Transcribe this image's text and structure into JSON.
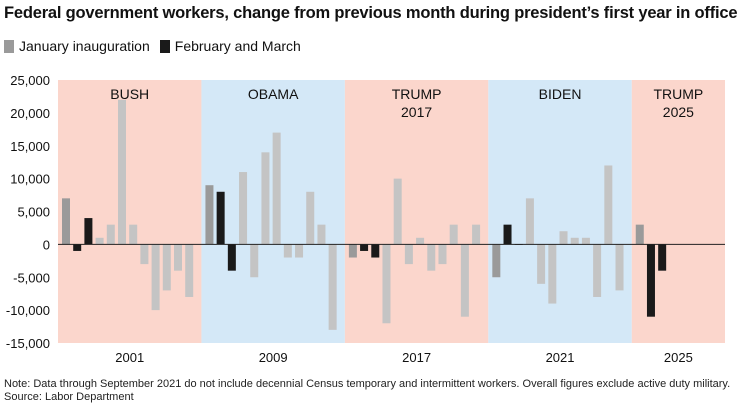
{
  "title": "Federal government workers, change from previous month during president’s first year in office",
  "legend": [
    {
      "label": "January inauguration",
      "color": "#9a9a9a"
    },
    {
      "label": "February and March",
      "color": "#1a1a1a"
    }
  ],
  "note": "Note: Data through September 2021 do not include decennial Census temporary and intermittent workers. Overall figures exclude active duty military.",
  "source": "Source: Labor Department",
  "colors": {
    "light_bar": "#c4c4c4",
    "pink_band": "#fbd6cc",
    "blue_band": "#d4e8f7"
  },
  "chart_data": {
    "type": "bar",
    "ylim": [
      -15000,
      25000
    ],
    "yticks": [
      "25,000",
      "20,000",
      "15,000",
      "10,000",
      "5,000",
      "0",
      "-5,000",
      "-10,000",
      "-15,000"
    ],
    "ytick_values": [
      25000,
      20000,
      15000,
      10000,
      5000,
      0,
      -5000,
      -10000,
      -15000
    ],
    "grid": false,
    "legend_position": "top-left",
    "panels": [
      {
        "label": "BUSH",
        "label2": "",
        "year": "2001",
        "band": "pink",
        "values": [
          7000,
          -1000,
          4000,
          1000,
          3000,
          22000,
          3000,
          -3000,
          -10000,
          -7000,
          -4000,
          -8000
        ],
        "kinds": [
          "jan",
          "febmar",
          "febmar",
          "rest",
          "rest",
          "rest",
          "rest",
          "rest",
          "rest",
          "rest",
          "rest",
          "rest"
        ]
      },
      {
        "label": "OBAMA",
        "label2": "",
        "year": "2009",
        "band": "blue",
        "values": [
          9000,
          8000,
          -4000,
          11000,
          -5000,
          14000,
          17000,
          -2000,
          -2000,
          8000,
          3000,
          -13000
        ],
        "kinds": [
          "jan",
          "febmar",
          "febmar",
          "rest",
          "rest",
          "rest",
          "rest",
          "rest",
          "rest",
          "rest",
          "rest",
          "rest"
        ]
      },
      {
        "label": "TRUMP",
        "label2": "2017",
        "year": "2017",
        "band": "pink",
        "values": [
          -2000,
          -1000,
          -2000,
          10000,
          -3000,
          1000,
          -4000,
          -3000,
          3000,
          -11000,
          3000,
          -12000
        ],
        "order": [
          0,
          1,
          2,
          11,
          3,
          4,
          5,
          6,
          7,
          8,
          9,
          10
        ],
        "kinds": [
          "jan",
          "febmar",
          "febmar",
          "rest",
          "rest",
          "rest",
          "rest",
          "rest",
          "rest",
          "rest",
          "rest",
          "rest"
        ]
      },
      {
        "label": "BIDEN",
        "label2": "",
        "year": "2021",
        "band": "blue",
        "values": [
          -5000,
          3000,
          0,
          7000,
          -6000,
          -9000,
          2000,
          1000,
          1000,
          -8000,
          12000,
          -7000
        ],
        "kinds": [
          "jan",
          "febmar",
          "febmar",
          "rest",
          "rest",
          "rest",
          "rest",
          "rest",
          "rest",
          "rest",
          "rest",
          "rest"
        ]
      },
      {
        "label": "TRUMP",
        "label2": "2025",
        "year": "2025",
        "band": "pink",
        "values": [
          3000,
          -11000,
          -4000
        ],
        "kinds": [
          "jan",
          "febmar",
          "febmar"
        ]
      }
    ]
  }
}
